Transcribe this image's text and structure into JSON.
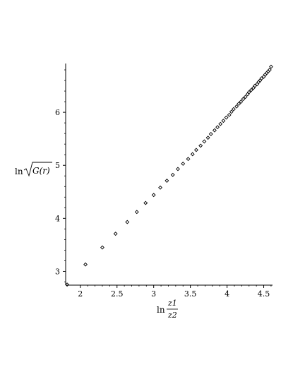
{
  "chart_data": {
    "type": "scatter",
    "title": "",
    "xlabel": {
      "prefix": "ln",
      "numerator": "z1",
      "denominator": "z2"
    },
    "ylabel": {
      "prefix": "ln",
      "radicand": "G(r)"
    },
    "xlim": [
      1.8,
      4.62
    ],
    "ylim": [
      2.74,
      6.92
    ],
    "xticks": [
      {
        "value": 2,
        "label": "2"
      },
      {
        "value": 2.5,
        "label": "2.5"
      },
      {
        "value": 3,
        "label": "3"
      },
      {
        "value": 3.5,
        "label": "3.5"
      },
      {
        "value": 4,
        "label": "4"
      },
      {
        "value": 4.5,
        "label": "4.5"
      }
    ],
    "yticks": [
      {
        "value": 3,
        "label": "3"
      },
      {
        "value": 4,
        "label": "4"
      },
      {
        "value": 5,
        "label": "5"
      },
      {
        "value": 6,
        "label": "6"
      }
    ],
    "grid": false,
    "legend": "none",
    "marker": "diamond",
    "marker_color": "#000000",
    "series": [
      {
        "x": [
          1.82,
          2.07,
          2.3,
          2.48,
          2.64,
          2.77,
          2.89,
          3.0,
          3.09,
          3.18,
          3.26,
          3.33,
          3.4,
          3.47,
          3.53,
          3.58,
          3.64,
          3.69,
          3.74,
          3.78,
          3.83,
          3.87,
          3.91,
          3.95,
          3.99,
          4.03,
          4.06,
          4.09,
          4.13,
          4.16,
          4.19,
          4.22,
          4.25,
          4.28,
          4.3,
          4.33,
          4.36,
          4.38,
          4.41,
          4.43,
          4.45,
          4.47,
          4.5,
          4.52,
          4.54,
          4.56,
          4.58,
          4.6
        ],
        "y": [
          2.75,
          3.13,
          3.45,
          3.71,
          3.93,
          4.12,
          4.29,
          4.44,
          4.58,
          4.71,
          4.82,
          4.93,
          5.03,
          5.12,
          5.21,
          5.29,
          5.37,
          5.45,
          5.52,
          5.59,
          5.66,
          5.72,
          5.78,
          5.84,
          5.9,
          5.95,
          6.01,
          6.06,
          6.11,
          6.16,
          6.2,
          6.25,
          6.29,
          6.34,
          6.38,
          6.42,
          6.46,
          6.5,
          6.53,
          6.57,
          6.6,
          6.64,
          6.67,
          6.71,
          6.74,
          6.77,
          6.8,
          6.86
        ]
      }
    ]
  }
}
